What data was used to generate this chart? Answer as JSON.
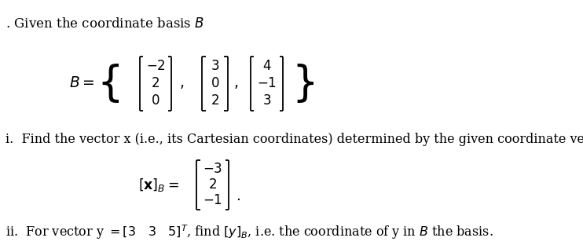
{
  "bg_color": "#ffffff",
  "text_color": "#000000",
  "title_line": ". Given the coordinate basis $B$",
  "basis_label": "$B = $",
  "vec1": [
    "$-2$",
    "$2$",
    "$0$"
  ],
  "vec2": [
    "$3$",
    "$0$",
    "$2$"
  ],
  "vec3": [
    "$4$",
    "$-1$",
    "$3$"
  ],
  "part_i_text": "i.  Find the vector x (i.e., its Cartesian coordinates) determined by the given coordinate vector",
  "xB_label": "$[\\mathbf{x}]_B = $",
  "xB_vec": [
    "$-3$",
    "$2$",
    "$-1$"
  ],
  "part_ii_text": "ii.  For vector y $= [3 \\quad 3 \\quad 5]^T$, find $[y]_B$, i.e. the coordinate of y in $B$ the basis.",
  "font_size_main": 11.5,
  "font_size_title": 12
}
